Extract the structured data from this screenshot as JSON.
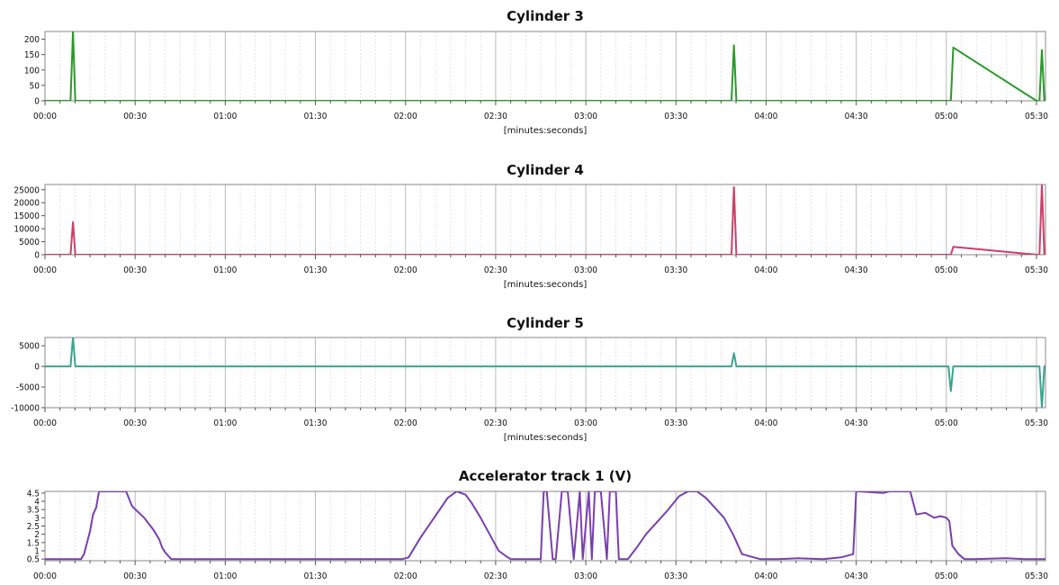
{
  "chart_data": [
    {
      "type": "line",
      "title": "Cylinder 3",
      "xlabel": "[minutes:seconds]",
      "ylabel": "",
      "xlim": [
        0,
        333
      ],
      "ylim": [
        0,
        225
      ],
      "yticks": [
        0,
        50,
        100,
        150,
        200
      ],
      "ytick_labels": [
        "0",
        "50",
        "100",
        "150",
        "200"
      ],
      "xticks": [
        0,
        30,
        60,
        90,
        120,
        150,
        180,
        210,
        240,
        270,
        300,
        330
      ],
      "xtick_labels": [
        "00:00",
        "00:30",
        "01:00",
        "01:30",
        "02:00",
        "02:30",
        "03:00",
        "03:30",
        "04:00",
        "04:30",
        "05:00",
        "05:30"
      ],
      "grid": true,
      "series": [
        {
          "color": "#2a9a2a",
          "x": [
            0,
            8.5,
            9.3,
            10.1,
            226,
            228.5,
            229.3,
            230.1,
            300.7,
            301.5,
            302.3,
            330,
            331,
            331.8,
            332.6,
            333
          ],
          "y": [
            0,
            0,
            225,
            0,
            0,
            0,
            180,
            0,
            0,
            0,
            173,
            0,
            0,
            165,
            0,
            0
          ]
        }
      ]
    },
    {
      "type": "line",
      "title": "Cylinder 4",
      "xlabel": "[minutes:seconds]",
      "ylabel": "",
      "xlim": [
        0,
        333
      ],
      "ylim": [
        0,
        27000
      ],
      "yticks": [
        0,
        5000,
        10000,
        15000,
        20000,
        25000
      ],
      "ytick_labels": [
        "0",
        "5000",
        "10000",
        "15000",
        "20000",
        "25000"
      ],
      "xticks": [
        0,
        30,
        60,
        90,
        120,
        150,
        180,
        210,
        240,
        270,
        300,
        330
      ],
      "xtick_labels": [
        "00:00",
        "00:30",
        "01:00",
        "01:30",
        "02:00",
        "02:30",
        "03:00",
        "03:30",
        "04:00",
        "04:30",
        "05:00",
        "05:30"
      ],
      "grid": true,
      "series": [
        {
          "color": "#cc3f6a",
          "x": [
            0,
            8.5,
            9.3,
            10.1,
            226,
            228.5,
            229.3,
            230.1,
            300.7,
            301.5,
            302.3,
            330,
            331,
            331.8,
            332.6,
            333
          ],
          "y": [
            0,
            0,
            12500,
            0,
            0,
            0,
            26000,
            0,
            0,
            0,
            3000,
            0,
            0,
            27000,
            0,
            0
          ]
        }
      ]
    },
    {
      "type": "line",
      "title": "Cylinder 5",
      "xlabel": "[minutes:seconds]",
      "ylabel": "",
      "xlim": [
        0,
        333
      ],
      "ylim": [
        -10000,
        7000
      ],
      "yticks": [
        -10000,
        -5000,
        0,
        5000
      ],
      "ytick_labels": [
        "-10000",
        "-5000",
        "0",
        "5000"
      ],
      "xticks": [
        0,
        30,
        60,
        90,
        120,
        150,
        180,
        210,
        240,
        270,
        300,
        330
      ],
      "xtick_labels": [
        "00:00",
        "00:30",
        "01:00",
        "01:30",
        "02:00",
        "02:30",
        "03:00",
        "03:30",
        "04:00",
        "04:30",
        "05:00",
        "05:30"
      ],
      "grid": true,
      "series": [
        {
          "color": "#3aa58e",
          "x": [
            0,
            8.5,
            9.3,
            10.1,
            228.5,
            229.3,
            230.1,
            300.7,
            301.5,
            302.3,
            331,
            331.8,
            332.6,
            333
          ],
          "y": [
            0,
            0,
            7000,
            0,
            0,
            3200,
            0,
            0,
            -6000,
            0,
            0,
            -10000,
            0,
            0
          ]
        }
      ]
    },
    {
      "type": "line",
      "title": "Accelerator track 1 (V)",
      "xlabel": "",
      "ylabel": "",
      "xlim": [
        0,
        333
      ],
      "ylim": [
        0.4,
        4.6
      ],
      "yticks": [
        0.5,
        1,
        1.5,
        2,
        2.5,
        3,
        3.5,
        4,
        4.5
      ],
      "ytick_labels": [
        "0.5",
        "1",
        "1.5",
        "2",
        "2.5",
        "3",
        "3.5",
        "4",
        "4.5"
      ],
      "xticks": [
        0,
        30,
        60,
        90,
        120,
        150,
        180,
        210,
        240,
        270,
        300,
        330
      ],
      "xtick_labels": [
        "00:00",
        "00:30",
        "01:00",
        "01:30",
        "02:00",
        "02:30",
        "03:00",
        "03:30",
        "04:00",
        "04:30",
        "05:00",
        "05:30"
      ],
      "grid": true,
      "series": [
        {
          "color": "#7a3fb0",
          "x": [
            0,
            12,
            13,
            15,
            16,
            17,
            18,
            27,
            29,
            33,
            36,
            38,
            39,
            40,
            41,
            42,
            44,
            119,
            121,
            125,
            128,
            131,
            134,
            137,
            140,
            142,
            145,
            148,
            151,
            154,
            155,
            156,
            165,
            166,
            167,
            169,
            170,
            172,
            174,
            176,
            178,
            179,
            181,
            182,
            183,
            185,
            187,
            188,
            190,
            191,
            194,
            197,
            200,
            203,
            207,
            211,
            214,
            217,
            220,
            223,
            226,
            229,
            232,
            238,
            244,
            251,
            259,
            265,
            269,
            270,
            271,
            279,
            281,
            285,
            288,
            290,
            293,
            294,
            296,
            298,
            300,
            301,
            302,
            304,
            306,
            309,
            320,
            326,
            333
          ],
          "y": [
            0.5,
            0.5,
            0.8,
            2.2,
            3.2,
            3.6,
            4.6,
            4.6,
            3.7,
            3.0,
            2.3,
            1.7,
            1.2,
            0.9,
            0.7,
            0.5,
            0.5,
            0.5,
            0.6,
            1.8,
            2.6,
            3.4,
            4.2,
            4.6,
            4.4,
            3.9,
            3.0,
            2.0,
            1.0,
            0.6,
            0.5,
            0.5,
            0.5,
            4.6,
            4.6,
            0.5,
            0.5,
            4.6,
            4.6,
            0.5,
            4.6,
            0.5,
            4.6,
            0.5,
            4.6,
            4.6,
            0.5,
            4.6,
            4.6,
            0.5,
            0.5,
            1.2,
            2.0,
            2.6,
            3.4,
            4.3,
            4.6,
            4.6,
            4.2,
            3.6,
            3.0,
            2.0,
            0.8,
            0.5,
            0.5,
            0.55,
            0.5,
            0.6,
            0.8,
            4.6,
            4.6,
            4.5,
            4.6,
            4.6,
            4.6,
            3.2,
            3.3,
            3.2,
            3.0,
            3.1,
            3.0,
            2.8,
            1.3,
            0.8,
            0.5,
            0.5,
            0.55,
            0.5,
            0.5
          ]
        }
      ]
    }
  ]
}
